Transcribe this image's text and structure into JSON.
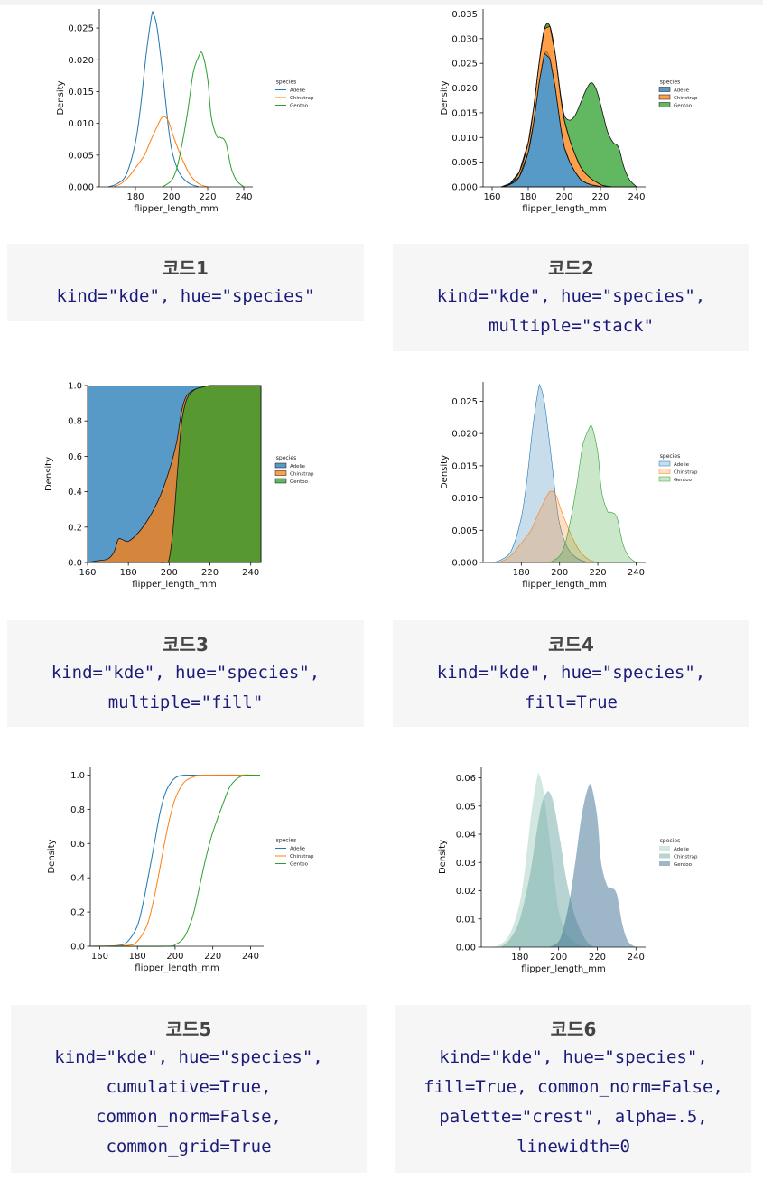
{
  "palettes": {
    "tab": [
      "#1f77b4",
      "#ff7f0e",
      "#2ca02c"
    ],
    "crest": [
      "#a6cfc2",
      "#6fa9a5",
      "#3d6f92"
    ]
  },
  "legend_title": "species",
  "cards": [
    {
      "title": "코드1",
      "code": [
        "kind=\"kde\", hue=\"species\""
      ]
    },
    {
      "title": "코드2",
      "code": [
        "kind=\"kde\", hue=\"species\",",
        "multiple=\"stack\""
      ]
    },
    {
      "title": "코드3",
      "code": [
        "kind=\"kde\", hue=\"species\",",
        "multiple=\"fill\""
      ]
    },
    {
      "title": "코드4",
      "code": [
        "kind=\"kde\", hue=\"species\",",
        "fill=True"
      ]
    },
    {
      "title": "코드5",
      "code": [
        "kind=\"kde\", hue=\"species\",",
        "cumulative=True,",
        "common_norm=False,",
        "common_grid=True"
      ]
    },
    {
      "title": "코드6",
      "code": [
        "kind=\"kde\", hue=\"species\",",
        "fill=True, common_norm=False,",
        "palette=\"crest\", alpha=.5,",
        "linewidth=0"
      ]
    }
  ],
  "chart_data": [
    {
      "type": "line",
      "mode": "lines",
      "xlabel": "flipper_length_mm",
      "ylabel": "Density",
      "xlim": [
        160,
        245
      ],
      "ylim": [
        0,
        0.028
      ],
      "xticks": [
        180,
        200,
        220,
        240
      ],
      "yticks": [
        0.0,
        0.005,
        0.01,
        0.015,
        0.02,
        0.025
      ],
      "ytick_labels": [
        "0.000",
        "0.005",
        "0.010",
        "0.015",
        "0.020",
        "0.025"
      ],
      "legend_placement": "right",
      "grid": false,
      "series": [
        {
          "name": "Adelie",
          "x": [
            165,
            170,
            175,
            180,
            183,
            186,
            189,
            190,
            192,
            195,
            198,
            200,
            203,
            206,
            210,
            215
          ],
          "y": [
            0,
            0.0005,
            0.002,
            0.007,
            0.013,
            0.021,
            0.027,
            0.0272,
            0.025,
            0.018,
            0.01,
            0.006,
            0.003,
            0.0015,
            0.0005,
            0
          ]
        },
        {
          "name": "Chinstrap",
          "x": [
            168,
            172,
            176,
            180,
            185,
            188,
            192,
            195,
            198,
            201,
            205,
            210,
            215,
            220
          ],
          "y": [
            0,
            0.0005,
            0.0015,
            0.003,
            0.005,
            0.007,
            0.0095,
            0.011,
            0.0105,
            0.008,
            0.005,
            0.002,
            0.0005,
            0
          ]
        },
        {
          "name": "Gentoo",
          "x": [
            195,
            200,
            203,
            206,
            209,
            212,
            215,
            217,
            220,
            222,
            225,
            227,
            230,
            233,
            236,
            240
          ],
          "y": [
            0,
            0.001,
            0.003,
            0.007,
            0.012,
            0.018,
            0.0205,
            0.021,
            0.017,
            0.011,
            0.008,
            0.0078,
            0.007,
            0.003,
            0.001,
            0
          ]
        }
      ]
    },
    {
      "type": "area",
      "mode": "stack",
      "xlabel": "flipper_length_mm",
      "ylabel": "Density",
      "xlim": [
        155,
        245
      ],
      "ylim": [
        0,
        0.036
      ],
      "xticks": [
        160,
        180,
        200,
        220,
        240
      ],
      "yticks": [
        0.0,
        0.005,
        0.01,
        0.015,
        0.02,
        0.025,
        0.03,
        0.035
      ],
      "ytick_labels": [
        "0.000",
        "0.005",
        "0.010",
        "0.015",
        "0.020",
        "0.025",
        "0.030",
        "0.035"
      ],
      "legend_placement": "right",
      "grid": false,
      "x": [
        165,
        170,
        175,
        180,
        183,
        186,
        189,
        192,
        195,
        198,
        200,
        203,
        206,
        209,
        212,
        215,
        218,
        221,
        224,
        227,
        230,
        233,
        236,
        240
      ],
      "series": [
        {
          "name": "Adelie",
          "values": [
            0,
            0.0005,
            0.002,
            0.007,
            0.013,
            0.021,
            0.027,
            0.026,
            0.02,
            0.012,
            0.008,
            0.005,
            0.003,
            0.0015,
            0.0008,
            0.0004,
            0.0002,
            0,
            0,
            0,
            0,
            0,
            0,
            0
          ]
        },
        {
          "name": "Chinstrap",
          "values": [
            0,
            0.0002,
            0.001,
            0.002,
            0.003,
            0.004,
            0.005,
            0.0065,
            0.0068,
            0.006,
            0.0055,
            0.0045,
            0.0035,
            0.0025,
            0.0018,
            0.0012,
            0.0007,
            0.0003,
            0.0001,
            0,
            0,
            0,
            0,
            0
          ]
        },
        {
          "name": "Gentoo",
          "values": [
            0,
            0,
            0,
            0,
            0,
            0,
            0,
            0,
            0,
            0.0005,
            0.001,
            0.004,
            0.008,
            0.013,
            0.017,
            0.0195,
            0.0185,
            0.015,
            0.011,
            0.009,
            0.008,
            0.004,
            0.0015,
            0
          ]
        }
      ]
    },
    {
      "type": "area",
      "mode": "fill",
      "xlabel": "flipper_length_mm",
      "ylabel": "Density",
      "xlim": [
        160,
        245
      ],
      "ylim": [
        0,
        1
      ],
      "xticks": [
        160,
        180,
        200,
        220,
        240
      ],
      "yticks": [
        0,
        0.2,
        0.4,
        0.6,
        0.8,
        1.0
      ],
      "ytick_labels": [
        "0.0",
        "0.2",
        "0.4",
        "0.6",
        "0.8",
        "1.0"
      ],
      "legend_placement": "right",
      "grid": false,
      "x": [
        160,
        165,
        170,
        173,
        175,
        177,
        180,
        185,
        190,
        195,
        198,
        200,
        202,
        204,
        206,
        208,
        210,
        213,
        216,
        220,
        225,
        245
      ],
      "boundaries": {
        "adelie_upper": [
          0,
          0.01,
          0.02,
          0.06,
          0.13,
          0.13,
          0.12,
          0.17,
          0.25,
          0.36,
          0.45,
          0.52,
          0.6,
          0.7,
          0.85,
          0.93,
          0.96,
          0.98,
          0.99,
          1.0,
          1.0,
          1.0
        ],
        "chinstrap_upper": [
          0,
          0.01,
          0.02,
          0.06,
          0.13,
          0.13,
          0.12,
          0.17,
          0.25,
          0.36,
          0.45,
          0.52,
          0.6,
          0.7,
          0.85,
          0.93,
          0.96,
          0.98,
          0.99,
          1.0,
          1.0,
          1.0
        ],
        "gentoo_lower": [
          0,
          0,
          0,
          0,
          0,
          0,
          0,
          0,
          0,
          0,
          0,
          0.02,
          0.2,
          0.5,
          0.78,
          0.9,
          0.95,
          0.98,
          0.99,
          1.0,
          1.0,
          1.0
        ]
      },
      "series": [
        {
          "name": "Adelie",
          "share_top": [
            1,
            1,
            1,
            1,
            1,
            1,
            1,
            1,
            1,
            1,
            1,
            1,
            1,
            1,
            1,
            1,
            1,
            1,
            1,
            1,
            1,
            1
          ]
        },
        {
          "name": "Chinstrap",
          "share_top": [
            0,
            0.01,
            0.02,
            0.06,
            0.13,
            0.13,
            0.12,
            0.17,
            0.25,
            0.36,
            0.45,
            0.52,
            0.6,
            0.7,
            0.85,
            0.93,
            0.96,
            0.98,
            0.99,
            1.0,
            1.0,
            1.0
          ]
        },
        {
          "name": "Gentoo",
          "share_top": [
            0,
            0,
            0,
            0,
            0,
            0,
            0,
            0,
            0,
            0,
            0,
            0.02,
            0.2,
            0.5,
            0.78,
            0.9,
            0.95,
            0.98,
            0.99,
            1.0,
            1.0,
            1.0
          ]
        }
      ]
    },
    {
      "type": "area",
      "mode": "overlay",
      "alpha": 0.25,
      "xlabel": "flipper_length_mm",
      "ylabel": "Density",
      "xlim": [
        160,
        245
      ],
      "ylim": [
        0,
        0.028
      ],
      "xticks": [
        180,
        200,
        220,
        240
      ],
      "yticks": [
        0.0,
        0.005,
        0.01,
        0.015,
        0.02,
        0.025
      ],
      "ytick_labels": [
        "0.000",
        "0.005",
        "0.010",
        "0.015",
        "0.020",
        "0.025"
      ],
      "legend_placement": "right",
      "grid": false,
      "series": [
        {
          "name": "Adelie",
          "x": [
            165,
            170,
            175,
            180,
            183,
            186,
            189,
            190,
            192,
            195,
            198,
            200,
            203,
            206,
            210,
            215
          ],
          "y": [
            0,
            0.0005,
            0.002,
            0.007,
            0.013,
            0.021,
            0.027,
            0.0272,
            0.025,
            0.018,
            0.01,
            0.006,
            0.003,
            0.0015,
            0.0005,
            0
          ]
        },
        {
          "name": "Chinstrap",
          "x": [
            168,
            172,
            176,
            180,
            185,
            188,
            192,
            195,
            198,
            201,
            205,
            210,
            215,
            220
          ],
          "y": [
            0,
            0.0005,
            0.0015,
            0.003,
            0.005,
            0.007,
            0.0095,
            0.011,
            0.0105,
            0.008,
            0.005,
            0.002,
            0.0005,
            0
          ]
        },
        {
          "name": "Gentoo",
          "x": [
            195,
            200,
            203,
            206,
            209,
            212,
            215,
            217,
            220,
            222,
            225,
            227,
            230,
            233,
            236,
            240
          ],
          "y": [
            0,
            0.001,
            0.003,
            0.007,
            0.012,
            0.018,
            0.0205,
            0.021,
            0.017,
            0.011,
            0.008,
            0.0078,
            0.007,
            0.003,
            0.001,
            0
          ]
        }
      ]
    },
    {
      "type": "line",
      "mode": "lines",
      "xlabel": "flipper_length_mm",
      "ylabel": "Density",
      "xlim": [
        155,
        247
      ],
      "ylim": [
        0,
        1.05
      ],
      "xticks": [
        160,
        180,
        200,
        220,
        240
      ],
      "yticks": [
        0,
        0.2,
        0.4,
        0.6,
        0.8,
        1.0
      ],
      "ytick_labels": [
        "0.0",
        "0.2",
        "0.4",
        "0.6",
        "0.8",
        "1.0"
      ],
      "legend_placement": "right",
      "grid": false,
      "series": [
        {
          "name": "Adelie",
          "x": [
            155,
            170,
            175,
            180,
            183,
            186,
            189,
            192,
            195,
            198,
            201,
            205,
            210,
            245
          ],
          "y": [
            0,
            0.005,
            0.03,
            0.12,
            0.25,
            0.42,
            0.6,
            0.78,
            0.9,
            0.96,
            0.99,
            1.0,
            1.0,
            1.0
          ]
        },
        {
          "name": "Chinstrap",
          "x": [
            155,
            175,
            180,
            185,
            188,
            191,
            194,
            197,
            200,
            203,
            206,
            210,
            215,
            245
          ],
          "y": [
            0,
            0.005,
            0.03,
            0.12,
            0.24,
            0.4,
            0.58,
            0.74,
            0.86,
            0.93,
            0.97,
            0.99,
            1.0,
            1.0
          ]
        },
        {
          "name": "Gentoo",
          "x": [
            155,
            195,
            200,
            204,
            207,
            210,
            213,
            216,
            219,
            222,
            225,
            229,
            233,
            237,
            240,
            245
          ],
          "y": [
            0,
            0,
            0.01,
            0.04,
            0.1,
            0.2,
            0.35,
            0.5,
            0.63,
            0.73,
            0.82,
            0.93,
            0.98,
            1.0,
            1.0,
            1.0
          ]
        }
      ]
    },
    {
      "type": "area",
      "mode": "overlay",
      "alpha": 0.5,
      "xlabel": "flipper_length_mm",
      "ylabel": "Density",
      "xlim": [
        160,
        245
      ],
      "ylim": [
        0,
        0.064
      ],
      "xticks": [
        180,
        200,
        220,
        240
      ],
      "yticks": [
        0.0,
        0.01,
        0.02,
        0.03,
        0.04,
        0.05,
        0.06
      ],
      "ytick_labels": [
        "0.00",
        "0.01",
        "0.02",
        "0.03",
        "0.04",
        "0.05",
        "0.06"
      ],
      "legend_placement": "right",
      "grid": false,
      "series": [
        {
          "name": "Adelie",
          "x": [
            165,
            170,
            175,
            180,
            183,
            186,
            189,
            190,
            192,
            195,
            198,
            200,
            203,
            206,
            210,
            215
          ],
          "y": [
            0,
            0.001,
            0.005,
            0.016,
            0.03,
            0.048,
            0.0605,
            0.061,
            0.056,
            0.04,
            0.023,
            0.013,
            0.006,
            0.003,
            0.001,
            0
          ]
        },
        {
          "name": "Chinstrap",
          "x": [
            170,
            175,
            180,
            185,
            188,
            191,
            194,
            196,
            198,
            201,
            204,
            208,
            212,
            216,
            220
          ],
          "y": [
            0,
            0.003,
            0.01,
            0.025,
            0.038,
            0.05,
            0.055,
            0.054,
            0.049,
            0.037,
            0.024,
            0.012,
            0.005,
            0.001,
            0
          ]
        },
        {
          "name": "Gentoo",
          "x": [
            195,
            200,
            203,
            206,
            209,
            212,
            215,
            217,
            220,
            222,
            225,
            227,
            230,
            233,
            236,
            240
          ],
          "y": [
            0,
            0.002,
            0.008,
            0.018,
            0.032,
            0.047,
            0.056,
            0.057,
            0.046,
            0.03,
            0.022,
            0.021,
            0.019,
            0.008,
            0.002,
            0
          ]
        }
      ]
    }
  ]
}
